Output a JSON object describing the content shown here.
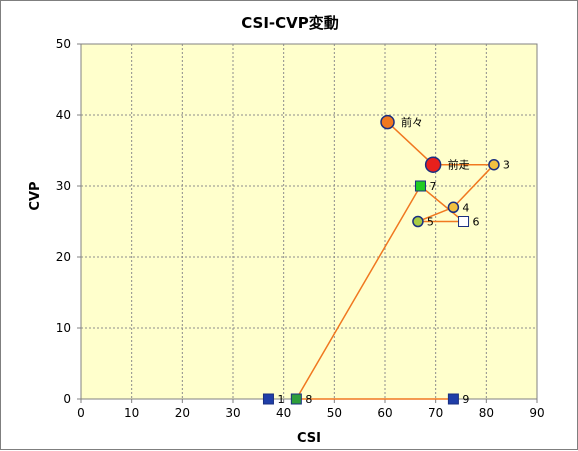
{
  "chart_data": {
    "type": "scatter",
    "title": "CSI-CVP変動",
    "xlabel": "CSI",
    "ylabel": "CVP",
    "xlim": [
      0,
      90
    ],
    "ylim": [
      0,
      50
    ],
    "x_ticks": [
      0,
      10,
      20,
      30,
      40,
      50,
      60,
      70,
      80,
      90
    ],
    "y_ticks": [
      0,
      10,
      20,
      30,
      40,
      50
    ],
    "grid": true,
    "legend": "none",
    "plot_background": "#ffffcc",
    "line_color": "#f07820",
    "path_order": [
      "9",
      "8",
      "7",
      "6",
      "5",
      "4",
      "3",
      "前走",
      "前々"
    ],
    "points": [
      {
        "label": "1",
        "x": 37,
        "y": 0,
        "marker": "square",
        "fill": "#1f3ea8"
      },
      {
        "label": "8",
        "x": 42.5,
        "y": 0,
        "marker": "square",
        "fill": "#2e9e3a"
      },
      {
        "label": "9",
        "x": 73.5,
        "y": 0,
        "marker": "square",
        "fill": "#1f3ea8"
      },
      {
        "label": "7",
        "x": 67,
        "y": 30,
        "marker": "square",
        "fill": "#22cc22"
      },
      {
        "label": "6",
        "x": 75.5,
        "y": 25,
        "marker": "square",
        "fill": "#ffffff"
      },
      {
        "label": "5",
        "x": 66.5,
        "y": 25,
        "marker": "circle",
        "fill": "#a8cc44"
      },
      {
        "label": "4",
        "x": 73.5,
        "y": 27,
        "marker": "circle",
        "fill": "#f0c040"
      },
      {
        "label": "3",
        "x": 81.5,
        "y": 33,
        "marker": "circle",
        "fill": "#f0c040"
      },
      {
        "label": "前走",
        "x": 69.5,
        "y": 33,
        "marker": "circle-large",
        "fill": "#e8201c"
      },
      {
        "label": "前々",
        "x": 60.5,
        "y": 39,
        "marker": "circle-medium",
        "fill": "#f07820"
      }
    ]
  }
}
